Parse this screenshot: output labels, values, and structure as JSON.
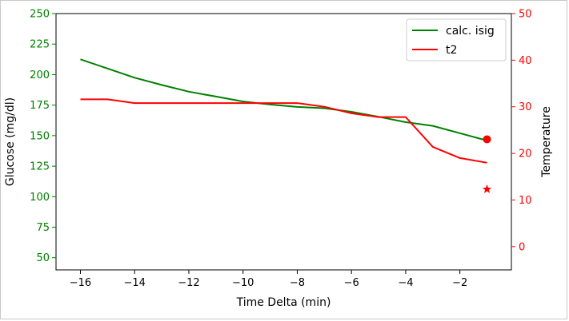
{
  "chart_data": {
    "type": "line",
    "xlabel": "Time Delta (min)",
    "ylabel_left": "Glucose (mg/dl)",
    "ylabel_right": "Temperature",
    "xlim": [
      -16.9,
      -0.1
    ],
    "ylim_left": [
      40,
      250
    ],
    "ylim_right": [
      -5,
      50
    ],
    "xticks": [
      -16,
      -14,
      -12,
      -10,
      -8,
      -6,
      -4,
      -2
    ],
    "yticks_left": [
      50,
      75,
      100,
      125,
      150,
      175,
      200,
      225,
      250
    ],
    "yticks_right": [
      0,
      10,
      20,
      30,
      40,
      50
    ],
    "grid": false,
    "legend_position": "top-right",
    "colors": {
      "left_axis": "#008000",
      "right_axis": "#ff0000"
    },
    "series": [
      {
        "name": "calc. isig",
        "axis": "left",
        "color": "#008000",
        "x": [
          -16,
          -15,
          -14,
          -13,
          -12,
          -11,
          -10,
          -9,
          -8,
          -7,
          -6,
          -5,
          -4,
          -3,
          -2,
          -1
        ],
        "y": [
          212.5,
          205,
          197.5,
          191.5,
          186,
          182,
          178,
          175.5,
          173.5,
          172.5,
          169.5,
          165.5,
          161,
          158,
          152,
          146
        ]
      },
      {
        "name": "t2",
        "axis": "right",
        "color": "#ff0000",
        "x": [
          -16,
          -15,
          -14,
          -13,
          -12,
          -11,
          -10,
          -9,
          -8,
          -7,
          -6,
          -5,
          -4,
          -3,
          -2,
          -1
        ],
        "y": [
          31.6,
          31.6,
          30.8,
          30.8,
          30.8,
          30.8,
          30.8,
          30.8,
          30.8,
          30,
          28.6,
          27.8,
          27.8,
          21.4,
          19,
          18
        ]
      }
    ],
    "markers": [
      {
        "type": "circle",
        "axis": "left",
        "x": -1,
        "y": 147,
        "color": "#ff0000"
      },
      {
        "type": "star",
        "axis": "right",
        "x": -1,
        "y": 12.3,
        "color": "#ff0000"
      }
    ]
  }
}
